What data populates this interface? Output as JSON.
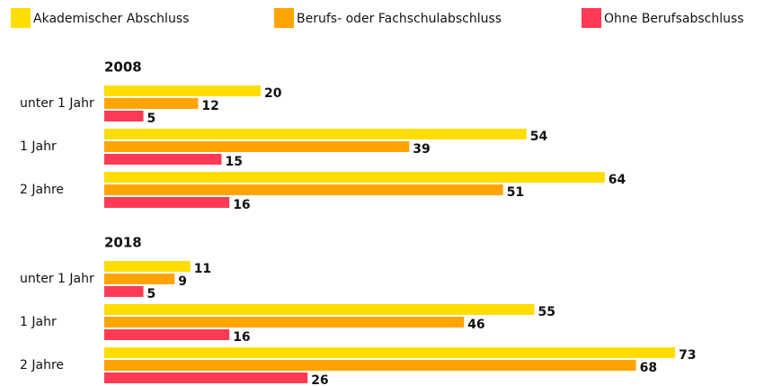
{
  "chart_data": [
    {
      "type": "bar",
      "orientation": "horizontal",
      "title": "2008",
      "categories": [
        "unter 1 Jahr",
        "1 Jahr",
        "2 Jahre"
      ],
      "series": [
        {
          "name": "Akademischer Abschluss",
          "color": "#ffdd00",
          "values": [
            20,
            54,
            64
          ]
        },
        {
          "name": "Berufs- oder Fachschulabschluss",
          "color": "#ffa400",
          "values": [
            12,
            39,
            51
          ]
        },
        {
          "name": "Ohne Berufsabschluss",
          "color": "#ff3a55",
          "values": [
            5,
            15,
            16
          ]
        }
      ]
    },
    {
      "type": "bar",
      "orientation": "horizontal",
      "title": "2018",
      "categories": [
        "unter 1 Jahr",
        "1 Jahr",
        "2 Jahre"
      ],
      "series": [
        {
          "color": "#ffdd00",
          "values": [
            11,
            55,
            73
          ]
        },
        {
          "color": "#ffa400",
          "values": [
            9,
            46,
            68
          ]
        },
        {
          "color": "#ff3a55",
          "values": [
            5,
            16,
            26
          ]
        }
      ]
    }
  ]
}
